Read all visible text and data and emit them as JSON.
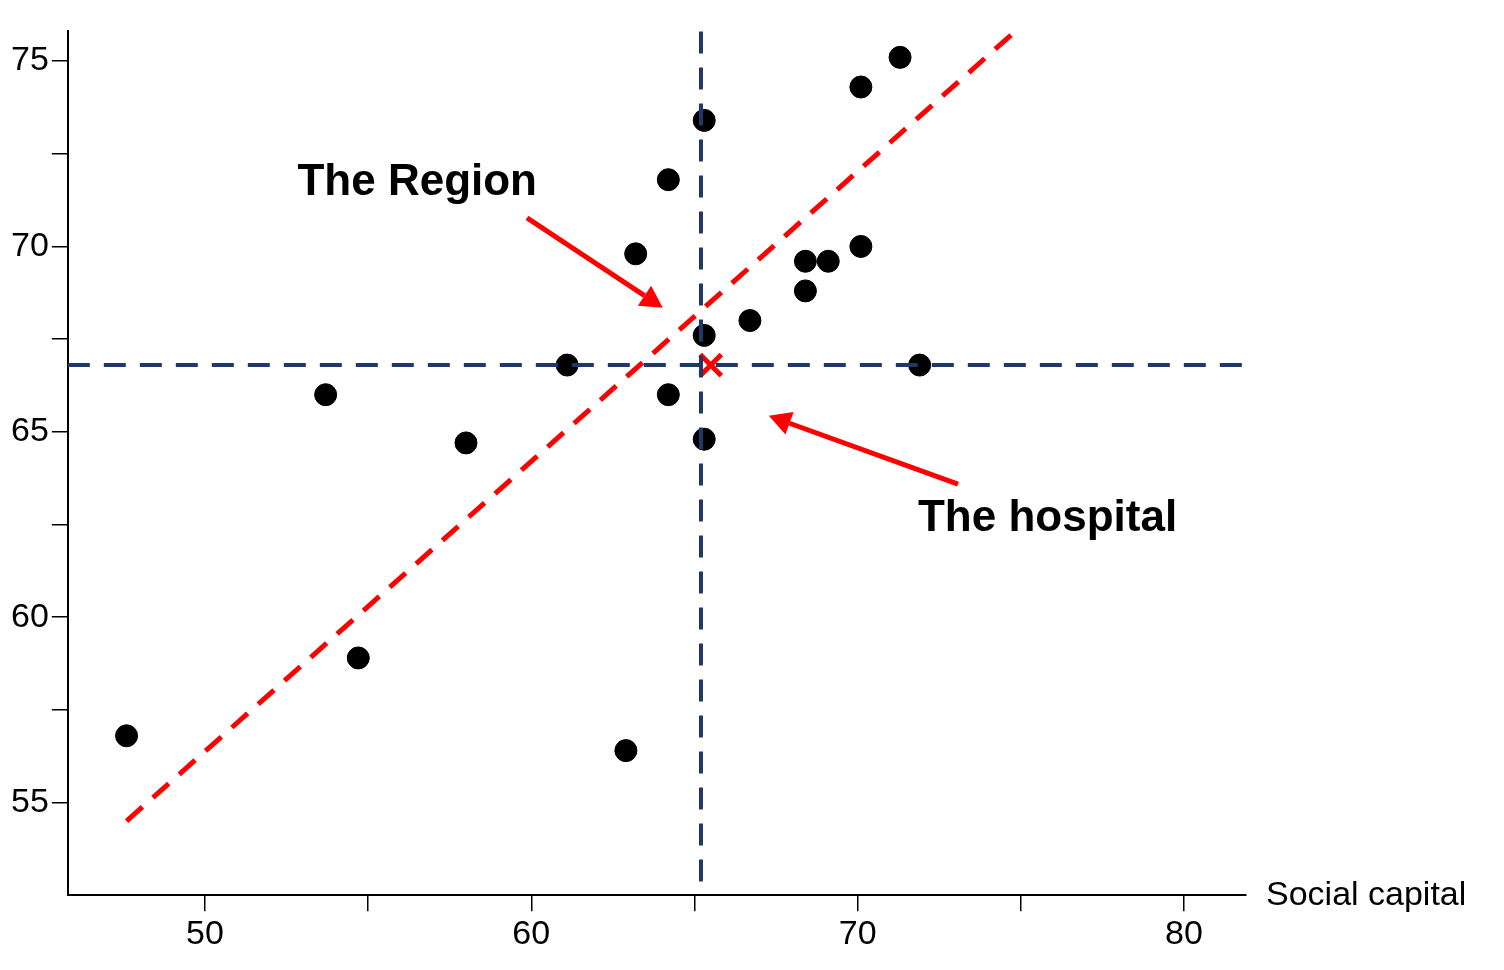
{
  "chart_data": {
    "type": "scatter",
    "xlabel": "Social capital",
    "grid": false,
    "legend": false,
    "xlim": [
      45.8,
      81.9
    ],
    "ylim": [
      52.5,
      75.8
    ],
    "xticks": [
      50,
      {
        "value": 55,
        "label": null
      },
      60,
      {
        "value": 65,
        "label": null
      },
      70,
      {
        "value": 75,
        "label": null
      },
      80
    ],
    "yticks": [
      55,
      {
        "value": 57.5,
        "label": null
      },
      60,
      {
        "value": 62.5,
        "label": null
      },
      65,
      {
        "value": 67.5,
        "label": null
      },
      70,
      {
        "value": 72.5,
        "label": null
      },
      75
    ],
    "series": [
      {
        "type": "scatter",
        "color": "#000000",
        "marker": "circle",
        "x": [
          47.6,
          53.7,
          54.7,
          58.0,
          61.1,
          62.9,
          63.2,
          64.2,
          64.2,
          65.3,
          65.3,
          65.3,
          66.7,
          68.4,
          68.4,
          69.1,
          70.1,
          70.1,
          71.3,
          71.9
        ],
        "values": [
          56.8,
          66.0,
          58.9,
          64.7,
          66.8,
          56.4,
          69.8,
          71.8,
          66.0,
          73.4,
          67.6,
          64.8,
          68.0,
          69.6,
          68.8,
          69.6,
          70.0,
          74.3,
          75.1,
          66.8
        ]
      },
      {
        "type": "scatter",
        "color": "#ff0000",
        "marker": "cross",
        "x": [
          65.5
        ],
        "values": [
          66.8
        ]
      },
      {
        "type": "line",
        "color": "#ff0000",
        "line_style": "dashed",
        "marker": "none",
        "x": [
          74.7,
          47.6
        ],
        "values": [
          75.7,
          54.5
        ]
      }
    ],
    "ref_lines": [
      {
        "axis": "x",
        "value": 65.2,
        "color": "#1f3864",
        "line_style": "dashed"
      },
      {
        "axis": "y",
        "value": 66.8,
        "color": "#1f3864",
        "line_style": "dashed"
      }
    ],
    "annotations": [
      "The Region",
      "The hospital"
    ]
  }
}
